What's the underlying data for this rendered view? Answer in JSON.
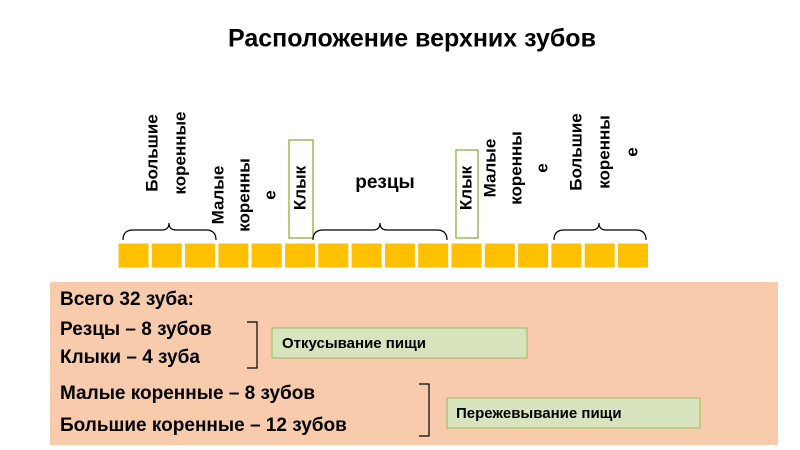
{
  "title": "Расположение верхних зубов",
  "tooth_labels": [
    {
      "lines": [
        "Большие",
        "коренные"
      ]
    },
    {
      "lines": [
        "Малые",
        "коренны",
        "е"
      ]
    },
    {
      "lines": [
        "Клык"
      ]
    },
    {
      "lines": [
        "резцы"
      ]
    },
    {
      "lines": [
        "Клык"
      ]
    },
    {
      "lines": [
        "Малые",
        "коренны",
        "е"
      ]
    },
    {
      "lines": [
        "Большие",
        "коренны",
        "е"
      ]
    }
  ],
  "summary": [
    "Всего 32 зуба:",
    "Резцы – 8 зубов",
    "Клыки – 4 зуба",
    "Малые коренные – 8 зубов",
    "Большие коренные – 12 зубов"
  ],
  "functions": [
    "Откусывание пищи",
    "Пережевывание пищи"
  ]
}
